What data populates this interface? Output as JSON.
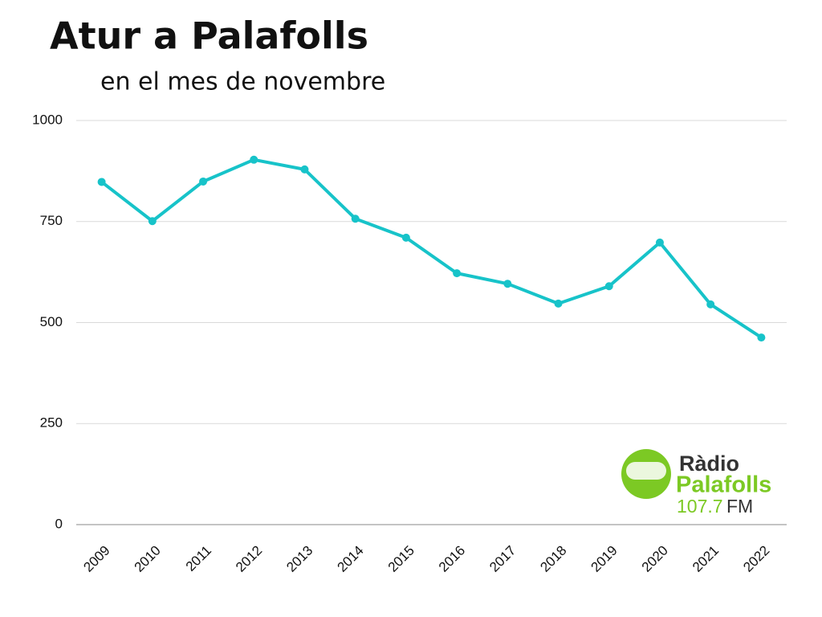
{
  "chart_data": {
    "type": "line",
    "title": "Atur a Palafolls",
    "subtitle": "en el mes de novembre",
    "categories": [
      "2009",
      "2010",
      "2011",
      "2012",
      "2013",
      "2014",
      "2015",
      "2016",
      "2017",
      "2018",
      "2019",
      "2020",
      "2021",
      "2022"
    ],
    "values": [
      848,
      751,
      849,
      903,
      879,
      757,
      710,
      622,
      596,
      547,
      590,
      698,
      545,
      463
    ],
    "color": "#17c3c9",
    "ylim": [
      0,
      1000
    ],
    "yticks": [
      0,
      250,
      500,
      750,
      1000
    ],
    "grid": true
  },
  "logo": {
    "line1": "Ràdio",
    "line2": "Palafolls",
    "frequency": "107.7",
    "band": "FM"
  }
}
